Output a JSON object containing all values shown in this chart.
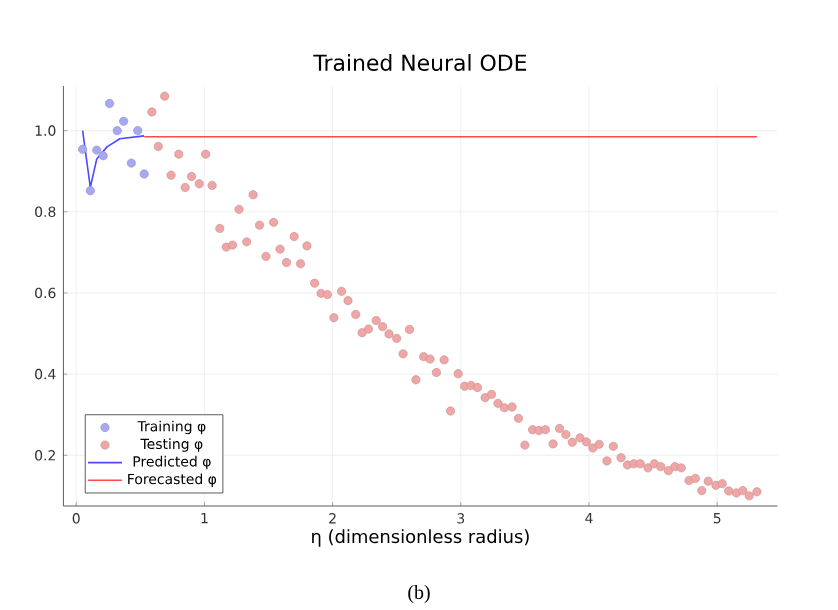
{
  "chart_data": {
    "type": "scatter",
    "title": "Trained Neural ODE",
    "xlabel": "η (dimensionless radius)",
    "xlim": [
      -0.1,
      5.47
    ],
    "ylim": [
      0.075,
      1.11
    ],
    "xticks": [
      0,
      1,
      2,
      3,
      4,
      5
    ],
    "yticks": [
      0.2,
      0.4,
      0.6,
      0.8,
      {
        "value": 1.0,
        "label": "1.0"
      }
    ],
    "grid": true,
    "legend": "bottom left",
    "annotations": [
      "(b)"
    ],
    "series": [
      {
        "name": "Training φ",
        "marker": "circle",
        "color": "#a8a8f0",
        "x": [
          0.05,
          0.11,
          0.16,
          0.21,
          0.26,
          0.32,
          0.37,
          0.43,
          0.48,
          0.53
        ],
        "values": [
          0.954,
          0.852,
          0.952,
          0.938,
          1.067,
          1.0,
          1.023,
          0.92,
          1.0,
          0.893
        ]
      },
      {
        "name": "Testing φ",
        "marker": "circle",
        "color": "#eea6a6",
        "x": [
          0.59,
          0.64,
          0.69,
          0.74,
          0.8,
          0.85,
          0.9,
          0.96,
          1.01,
          1.06,
          1.12,
          1.17,
          1.22,
          1.27,
          1.33,
          1.38,
          1.43,
          1.48,
          1.54,
          1.59,
          1.64,
          1.7,
          1.75,
          1.8,
          1.86,
          1.91,
          1.96,
          2.01,
          2.07,
          2.12,
          2.18,
          2.23,
          2.28,
          2.34,
          2.39,
          2.44,
          2.5,
          2.55,
          2.6,
          2.65,
          2.71,
          2.76,
          2.81,
          2.87,
          2.92,
          2.98,
          3.03,
          3.08,
          3.13,
          3.19,
          3.24,
          3.29,
          3.34,
          3.4,
          3.45,
          3.5,
          3.56,
          3.61,
          3.66,
          3.72,
          3.77,
          3.82,
          3.87,
          3.93,
          3.98,
          4.03,
          4.08,
          4.14,
          4.19,
          4.25,
          4.3,
          4.35,
          4.4,
          4.46,
          4.51,
          4.56,
          4.62,
          4.67,
          4.72,
          4.78,
          4.83,
          4.88,
          4.93,
          4.99,
          5.04,
          5.09,
          5.15,
          5.2,
          5.25,
          5.31
        ],
        "values": [
          1.046,
          0.961,
          1.085,
          0.89,
          0.942,
          0.86,
          0.887,
          0.869,
          0.942,
          0.865,
          0.759,
          0.713,
          0.718,
          0.806,
          0.726,
          0.842,
          0.767,
          0.69,
          0.774,
          0.708,
          0.675,
          0.739,
          0.672,
          0.716,
          0.624,
          0.599,
          0.596,
          0.539,
          0.604,
          0.581,
          0.547,
          0.502,
          0.511,
          0.532,
          0.517,
          0.499,
          0.488,
          0.45,
          0.51,
          0.386,
          0.443,
          0.437,
          0.404,
          0.435,
          0.309,
          0.401,
          0.37,
          0.372,
          0.367,
          0.342,
          0.35,
          0.328,
          0.317,
          0.319,
          0.291,
          0.225,
          0.263,
          0.261,
          0.263,
          0.228,
          0.266,
          0.251,
          0.232,
          0.243,
          0.233,
          0.218,
          0.227,
          0.186,
          0.222,
          0.194,
          0.176,
          0.179,
          0.179,
          0.169,
          0.179,
          0.172,
          0.162,
          0.172,
          0.169,
          0.138,
          0.143,
          0.113,
          0.136,
          0.126,
          0.13,
          0.112,
          0.107,
          0.113,
          0.1,
          0.11
        ]
      },
      {
        "name": "Predicted φ",
        "type": "line",
        "marker": "none",
        "color": "#4a4aff",
        "x": [
          0.05,
          0.11,
          0.16,
          0.24,
          0.34,
          0.53
        ],
        "values": [
          1.0,
          0.86,
          0.93,
          0.96,
          0.98,
          0.987
        ]
      },
      {
        "name": "Forecasted φ",
        "type": "line",
        "marker": "none",
        "color": "#ff4a4a",
        "x": [
          0.53,
          5.31
        ],
        "values": [
          0.985,
          0.985
        ]
      }
    ]
  }
}
